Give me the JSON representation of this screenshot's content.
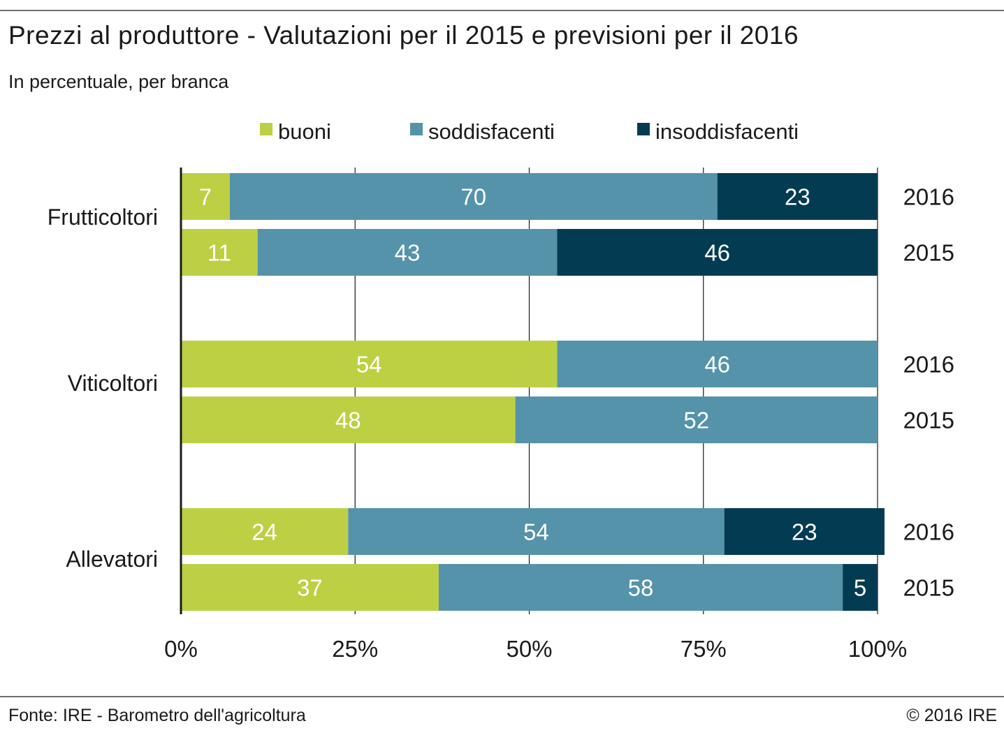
{
  "title": "Prezzi al produttore - Valutazioni per il 2015 e previsioni per il 2016",
  "subtitle": "In percentuale, per branca",
  "source": "Fonte: IRE - Barometro dell'agricoltura",
  "copyright": "© 2016 IRE",
  "colors": {
    "buoni": "#bdd044",
    "soddisfacenti": "#5593ab",
    "insoddisfacenti": "#033c52"
  },
  "chart_data": {
    "type": "bar",
    "orientation": "horizontal",
    "stacked": true,
    "xlim": [
      0,
      100
    ],
    "x_ticks": [
      "0%",
      "25%",
      "50%",
      "75%",
      "100%"
    ],
    "grid": true,
    "legend_position": "top",
    "series": [
      {
        "name": "buoni",
        "color": "#bdd044"
      },
      {
        "name": "soddisfacenti",
        "color": "#5593ab"
      },
      {
        "name": "insoddisfacenti",
        "color": "#033c52"
      }
    ],
    "groups": [
      {
        "category": "Frutticoltori",
        "rows": [
          {
            "year": "2016",
            "values": [
              7,
              70,
              23
            ]
          },
          {
            "year": "2015",
            "values": [
              11,
              43,
              46
            ]
          }
        ]
      },
      {
        "category": "Viticoltori",
        "rows": [
          {
            "year": "2016",
            "values": [
              54,
              46,
              0
            ]
          },
          {
            "year": "2015",
            "values": [
              48,
              52,
              0
            ]
          }
        ]
      },
      {
        "category": "Allevatori",
        "rows": [
          {
            "year": "2016",
            "values": [
              24,
              54,
              23
            ]
          },
          {
            "year": "2015",
            "values": [
              37,
              58,
              5
            ]
          }
        ]
      }
    ]
  }
}
